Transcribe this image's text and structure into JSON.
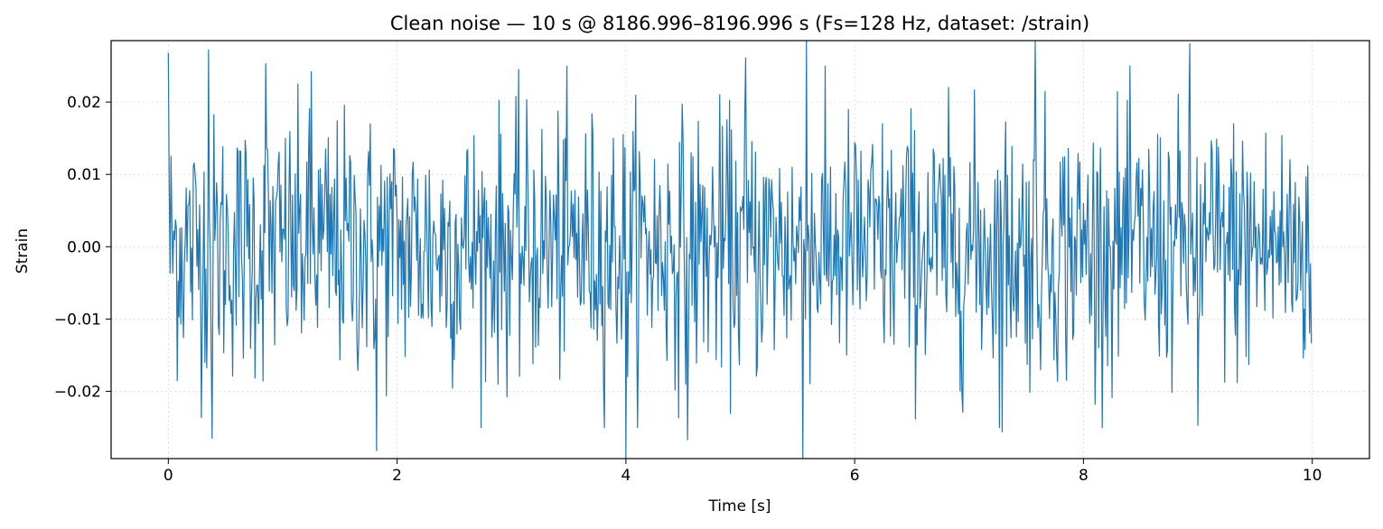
{
  "chart_data": {
    "type": "line",
    "title": "Clean noise — 10 s @ 8186.996–8196.996 s  (Fs=128 Hz, dataset: /strain)",
    "xlabel": "Time [s]",
    "ylabel": "Strain",
    "xlim": [
      -0.5,
      10.5
    ],
    "ylim": [
      -0.0293,
      0.0285
    ],
    "xticks": [
      0,
      2,
      4,
      6,
      8,
      10
    ],
    "xtick_labels": [
      "0",
      "2",
      "4",
      "6",
      "8",
      "10"
    ],
    "yticks": [
      0.02,
      0.01,
      0.0,
      -0.01,
      -0.02
    ],
    "ytick_labels": [
      "0.02",
      "0.01",
      "0.00",
      "−0.01",
      "−0.02"
    ],
    "grid": true,
    "legend": "none",
    "series": [
      {
        "color": "#1f77b4",
        "x_start": 0,
        "x_step": 0.0078125,
        "n_points": 1280,
        "std_approx": 0.009,
        "notable_values": [
          {
            "x": 0.0,
            "y": 0.0268
          },
          {
            "x": 0.35,
            "y": 0.0272
          },
          {
            "x": 0.38,
            "y": -0.0265
          },
          {
            "x": 0.85,
            "y": 0.0253
          },
          {
            "x": 1.25,
            "y": 0.0242
          },
          {
            "x": 1.82,
            "y": -0.0282
          },
          {
            "x": 4.0,
            "y": -0.0293
          },
          {
            "x": 4.54,
            "y": -0.0267
          },
          {
            "x": 5.05,
            "y": 0.0261
          },
          {
            "x": 5.55,
            "y": -0.0293
          },
          {
            "x": 5.58,
            "y": 0.0285
          },
          {
            "x": 7.29,
            "y": -0.0256
          },
          {
            "x": 7.58,
            "y": 0.0285
          },
          {
            "x": 8.93,
            "y": 0.0281
          },
          {
            "x": 9.0,
            "y": -0.0247
          }
        ]
      }
    ]
  }
}
